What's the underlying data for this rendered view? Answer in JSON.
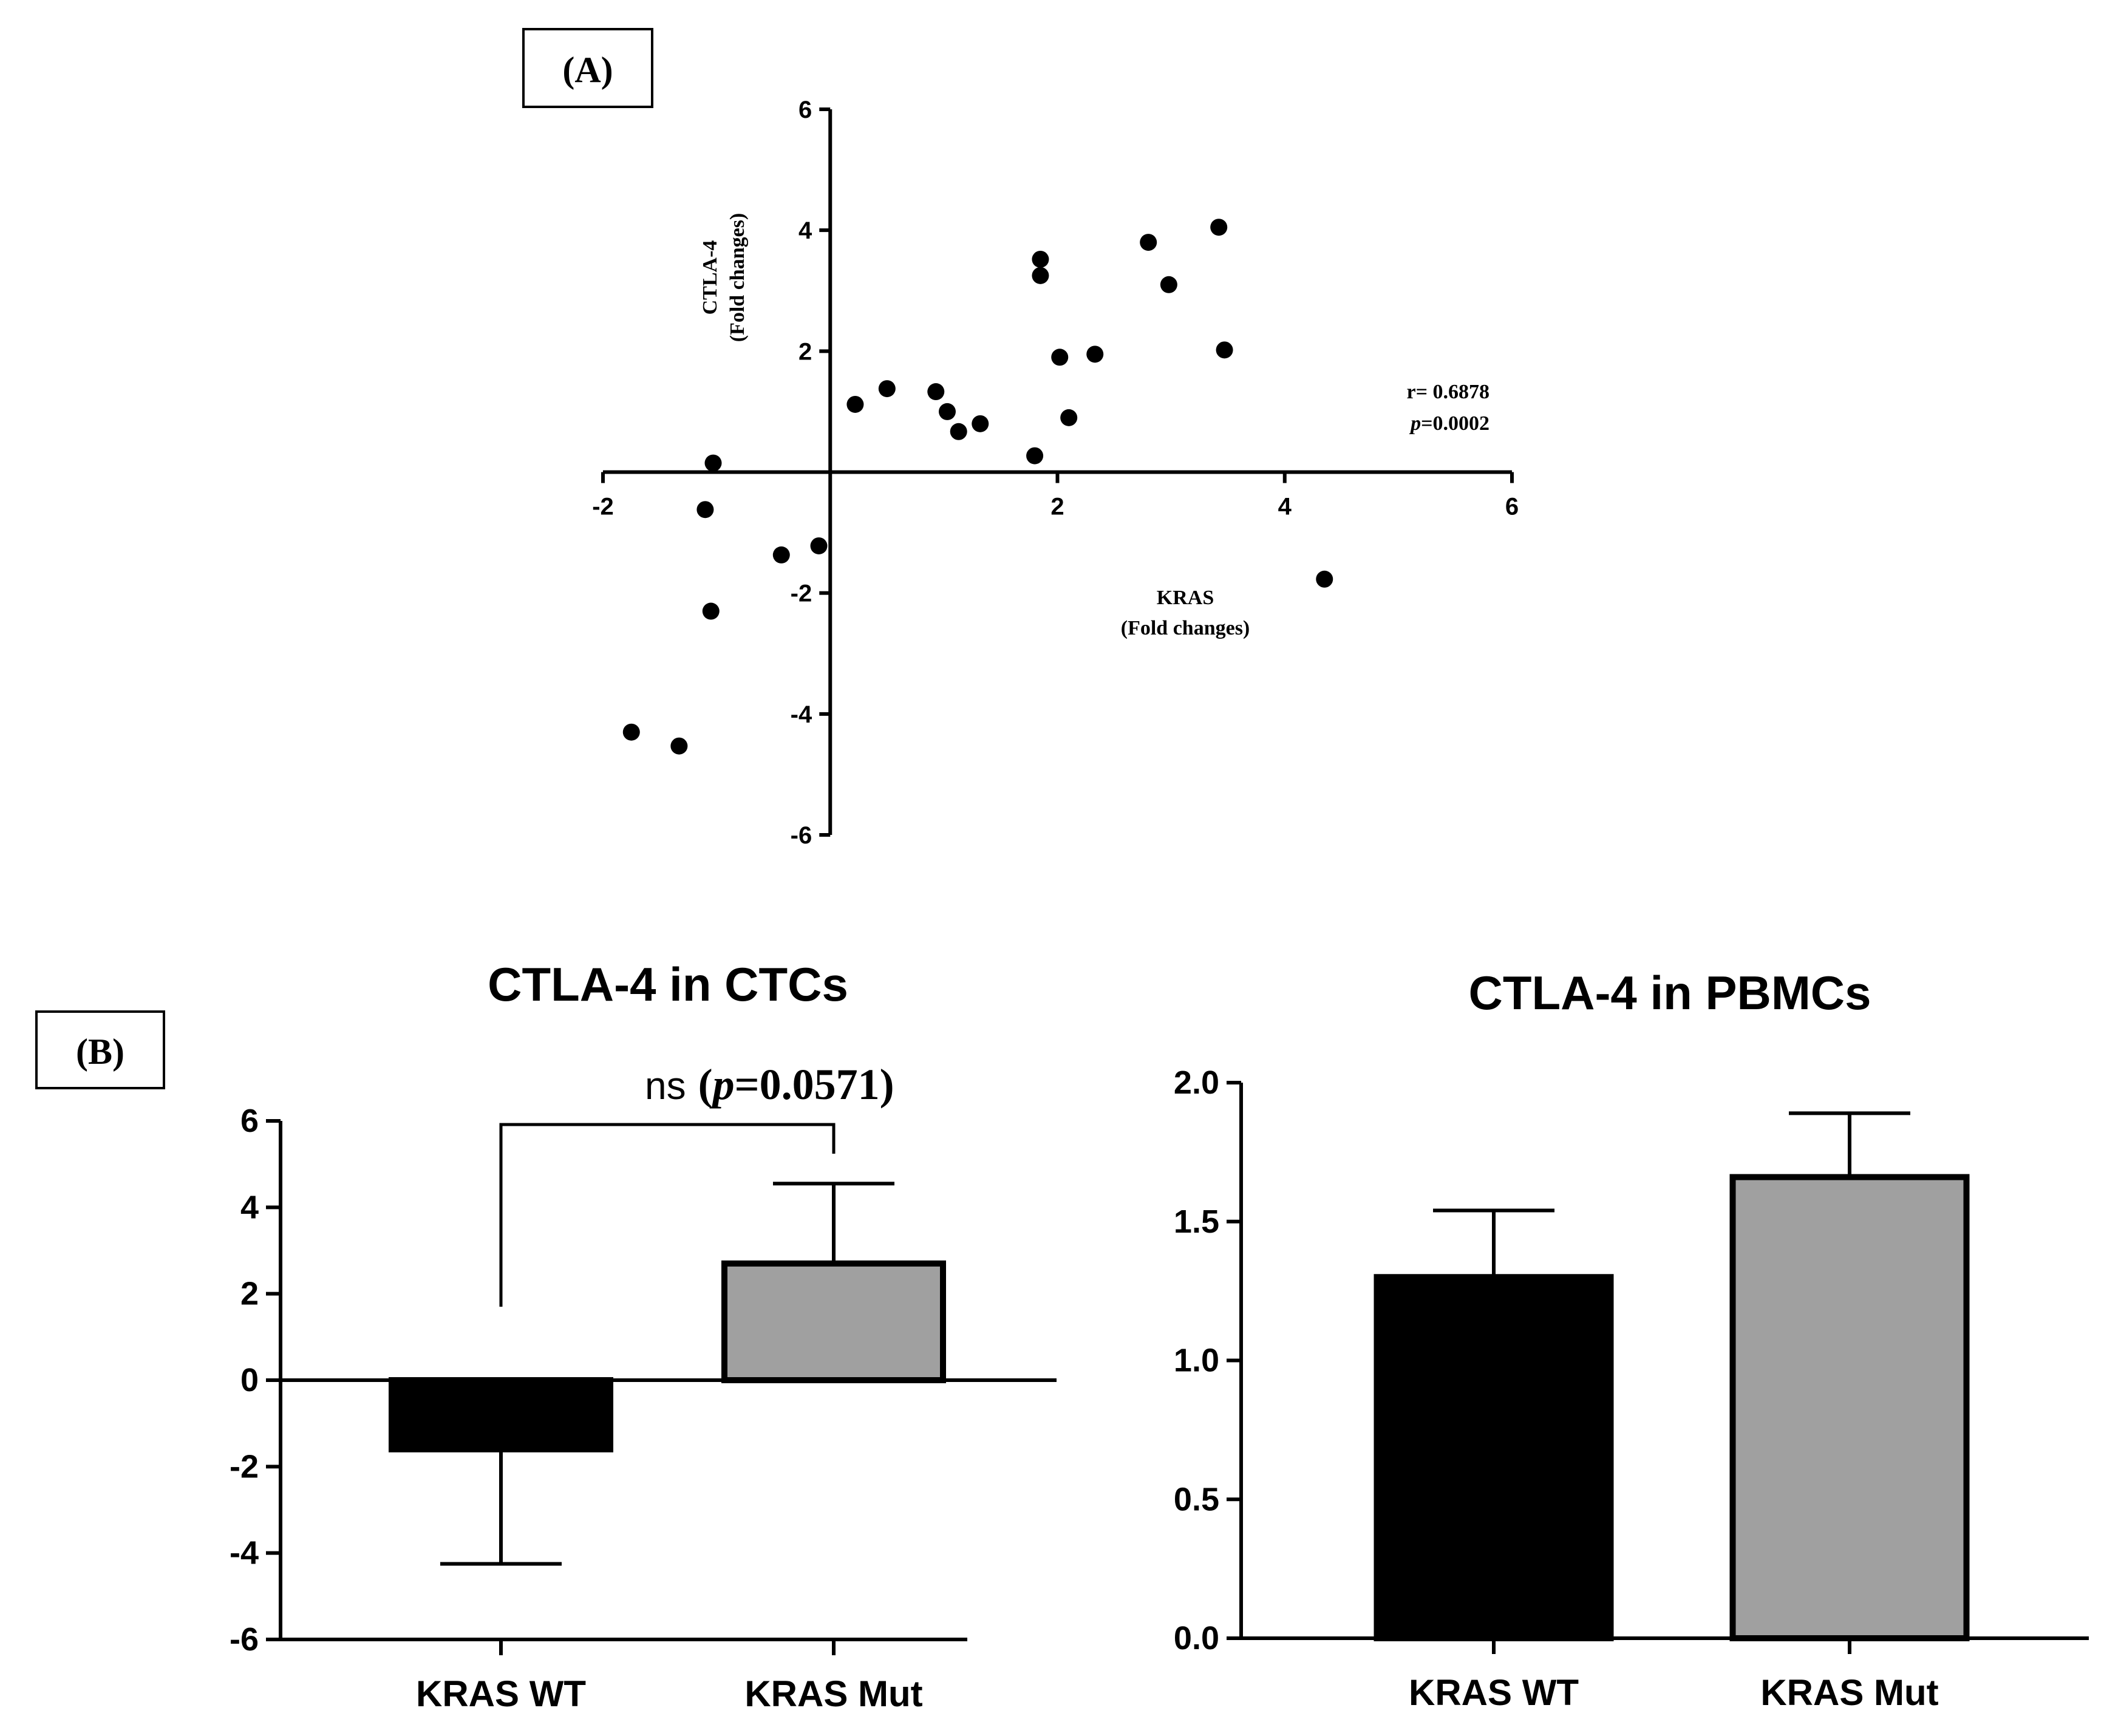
{
  "panels": {
    "a_label": "(A)",
    "b_label": "(B)"
  },
  "chart_data": [
    {
      "type": "scatter",
      "title": "",
      "xlabel_line1": "KRAS",
      "xlabel_line2": "(Fold changes)",
      "ylabel_line1": "CTLA-4",
      "ylabel_line2": "(Fold changes)",
      "xlim": [
        -2,
        6
      ],
      "ylim": [
        -6,
        6
      ],
      "xticks": [
        -2,
        2,
        4,
        6
      ],
      "yticks": [
        -6,
        -4,
        -2,
        2,
        4,
        6
      ],
      "xtick_labels": [
        "-2",
        "2",
        "4",
        "6"
      ],
      "ytick_labels": [
        "-6",
        "-4",
        "-2",
        "2",
        "4",
        "6"
      ],
      "annotation_r": "r= 0.6878",
      "annotation_p_italic": "p",
      "annotation_p_value": "=0.0002",
      "points": [
        {
          "x": 3.42,
          "y": 4.05
        },
        {
          "x": 2.8,
          "y": 3.8
        },
        {
          "x": 1.85,
          "y": 3.52
        },
        {
          "x": 1.85,
          "y": 3.25
        },
        {
          "x": 2.98,
          "y": 3.1
        },
        {
          "x": 3.47,
          "y": 2.02
        },
        {
          "x": 2.33,
          "y": 1.95
        },
        {
          "x": 2.02,
          "y": 1.9
        },
        {
          "x": 0.5,
          "y": 1.38
        },
        {
          "x": 0.93,
          "y": 1.33
        },
        {
          "x": 0.22,
          "y": 1.12
        },
        {
          "x": 1.03,
          "y": 1.0
        },
        {
          "x": 2.1,
          "y": 0.9
        },
        {
          "x": 1.32,
          "y": 0.8
        },
        {
          "x": 1.13,
          "y": 0.67
        },
        {
          "x": 1.8,
          "y": 0.27
        },
        {
          "x": -1.03,
          "y": 0.15
        },
        {
          "x": -1.1,
          "y": -0.62
        },
        {
          "x": -0.1,
          "y": -1.22
        },
        {
          "x": -0.43,
          "y": -1.37
        },
        {
          "x": 4.35,
          "y": -1.77
        },
        {
          "x": -1.05,
          "y": -2.3
        },
        {
          "x": -1.75,
          "y": -4.3
        },
        {
          "x": -1.33,
          "y": -4.53
        }
      ]
    },
    {
      "type": "bar",
      "title": "CTLA-4 in CTCs",
      "categories": [
        "KRAS WT",
        "KRAS Mut"
      ],
      "values": [
        -1.6,
        2.7
      ],
      "errors": [
        2.65,
        1.85
      ],
      "colors": [
        "#000000",
        "#a0a0a0"
      ],
      "ylim": [
        -6,
        6
      ],
      "yticks": [
        -6,
        -4,
        -2,
        0,
        2,
        4,
        6
      ],
      "ytick_labels": [
        "-6",
        "-4",
        "-2",
        "0",
        "2",
        "4",
        "6"
      ],
      "significance_ns": "ns",
      "significance_p_open": "(",
      "significance_p_italic": "p",
      "significance_p_value": "=0.0571)"
    },
    {
      "type": "bar",
      "title": "CTLA-4 in PBMCs",
      "categories": [
        "KRAS WT",
        "KRAS Mut"
      ],
      "values": [
        1.3,
        1.66
      ],
      "errors": [
        0.24,
        0.23
      ],
      "colors": [
        "#000000",
        "#a0a0a0"
      ],
      "ylim": [
        0,
        2
      ],
      "yticks": [
        0,
        0.5,
        1,
        1.5,
        2
      ],
      "ytick_labels": [
        "0.0",
        "0.5",
        "1.0",
        "1.5",
        "2.0"
      ]
    }
  ]
}
